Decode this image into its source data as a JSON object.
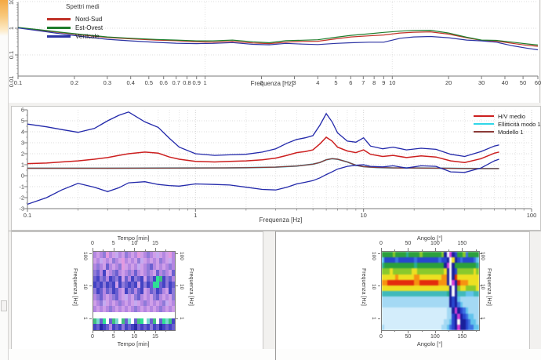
{
  "chart_data": [
    {
      "type": "line",
      "title": "Spettri medi",
      "xlabel": "Frequenza [Hz]",
      "xscale": "log",
      "yscale": "log",
      "xlim": [
        0.1,
        60
      ],
      "ylim": [
        0.016,
        9.4
      ],
      "xticks": [
        0.1,
        0.2,
        0.3,
        0.4,
        0.5,
        0.6,
        0.7,
        0.8,
        0.9,
        1,
        2,
        3,
        4,
        5,
        6,
        7,
        8,
        9,
        10,
        20,
        30,
        40,
        50,
        60
      ],
      "yticks": [
        "10",
        "1",
        "0.1",
        "0.01"
      ],
      "grid": true,
      "legend_position": "top-left",
      "series": [
        {
          "name": "Nord-Sud",
          "color": "#c03228",
          "x": [
            0.1,
            0.13,
            0.17,
            0.22,
            0.3,
            0.4,
            0.55,
            0.7,
            0.9,
            1.1,
            1.4,
            1.8,
            2.2,
            2.7,
            3.3,
            4,
            5,
            6,
            7.5,
            9,
            11,
            13,
            16,
            20,
            25,
            30,
            36,
            44,
            52,
            60
          ],
          "y": [
            1.05,
            0.85,
            0.68,
            0.56,
            0.45,
            0.4,
            0.36,
            0.34,
            0.31,
            0.3,
            0.32,
            0.28,
            0.265,
            0.3,
            0.32,
            0.325,
            0.4,
            0.47,
            0.52,
            0.56,
            0.66,
            0.71,
            0.73,
            0.6,
            0.44,
            0.35,
            0.33,
            0.27,
            0.23,
            0.21
          ]
        },
        {
          "name": "Est-Ovest",
          "color": "#1e7d2c",
          "x": [
            0.1,
            0.13,
            0.17,
            0.22,
            0.3,
            0.4,
            0.55,
            0.7,
            0.9,
            1.1,
            1.4,
            1.8,
            2.2,
            2.7,
            3.3,
            4,
            5,
            6,
            7.5,
            9,
            11,
            13,
            16,
            20,
            25,
            30,
            36,
            44,
            52,
            60
          ],
          "y": [
            1.07,
            0.88,
            0.71,
            0.58,
            0.47,
            0.42,
            0.38,
            0.36,
            0.335,
            0.335,
            0.36,
            0.31,
            0.285,
            0.34,
            0.355,
            0.37,
            0.46,
            0.54,
            0.62,
            0.7,
            0.78,
            0.83,
            0.84,
            0.66,
            0.46,
            0.36,
            0.35,
            0.3,
            0.26,
            0.235
          ]
        },
        {
          "name": "Verticale",
          "color": "#2c34a4",
          "x": [
            0.1,
            0.13,
            0.17,
            0.22,
            0.3,
            0.4,
            0.55,
            0.7,
            0.9,
            1.1,
            1.4,
            1.8,
            2.2,
            2.7,
            3.3,
            4,
            5,
            6,
            7.5,
            9,
            11,
            13,
            16,
            20,
            25,
            30,
            36,
            44,
            52,
            60
          ],
          "y": [
            1.02,
            0.8,
            0.62,
            0.49,
            0.385,
            0.335,
            0.295,
            0.275,
            0.265,
            0.27,
            0.29,
            0.25,
            0.24,
            0.27,
            0.255,
            0.245,
            0.27,
            0.285,
            0.3,
            0.3,
            0.42,
            0.47,
            0.49,
            0.44,
            0.36,
            0.335,
            0.3,
            0.22,
            0.18,
            0.155
          ]
        }
      ]
    },
    {
      "type": "line",
      "xlabel": "Frequenza [Hz]",
      "xscale": "log",
      "yscale": "linear",
      "xlim": [
        0.1,
        100
      ],
      "ylim": [
        -3,
        6
      ],
      "xticks": [
        0.1,
        1,
        10,
        100
      ],
      "yticks": [
        -3,
        -2,
        -1,
        0,
        1,
        2,
        3,
        4,
        5,
        6
      ],
      "grid": true,
      "legend_position": "top-right",
      "series": [
        {
          "name": "H/V medio",
          "color": "#cc1f1f",
          "x": [
            0.1,
            0.13,
            0.16,
            0.2,
            0.25,
            0.3,
            0.35,
            0.4,
            0.5,
            0.6,
            0.7,
            0.8,
            1,
            1.3,
            1.6,
            2,
            2.5,
            3,
            3.5,
            4,
            4.5,
            5,
            5.5,
            6,
            6.5,
            7,
            8,
            9,
            10,
            11,
            13,
            15,
            18,
            22,
            27,
            33,
            40,
            50,
            60,
            64
          ],
          "y": [
            1.1,
            1.15,
            1.25,
            1.35,
            1.5,
            1.65,
            1.85,
            2.0,
            2.15,
            2.05,
            1.7,
            1.5,
            1.3,
            1.25,
            1.3,
            1.35,
            1.45,
            1.6,
            1.85,
            2.1,
            2.2,
            2.35,
            2.9,
            3.5,
            3.15,
            2.6,
            2.25,
            2.1,
            2.35,
            1.95,
            1.75,
            1.85,
            1.65,
            1.8,
            1.7,
            1.35,
            1.2,
            1.55,
            2.05,
            2.15
          ]
        },
        {
          "name": "Ellitticità modo  1",
          "color": "#30d6e8",
          "x": [
            0.1,
            0.3,
            0.6,
            1,
            1.5,
            2,
            3,
            4,
            5,
            5.5,
            6,
            6.5,
            7,
            8,
            9,
            10,
            12,
            15,
            20,
            30,
            40,
            50,
            64
          ],
          "y": [
            0.68,
            0.68,
            0.69,
            0.7,
            0.71,
            0.73,
            0.78,
            0.88,
            1.05,
            1.2,
            1.45,
            1.55,
            1.5,
            1.25,
            0.95,
            0.82,
            0.74,
            0.71,
            0.7,
            0.68,
            0.66,
            0.65,
            0.65
          ]
        },
        {
          "name": "Modello 1",
          "color": "#8b3a38",
          "x": [
            0.1,
            0.3,
            0.6,
            1,
            1.5,
            2,
            3,
            4,
            5,
            5.5,
            6,
            6.5,
            7,
            8,
            9,
            10,
            12,
            15,
            20,
            30,
            40,
            50,
            64
          ],
          "y": [
            0.68,
            0.68,
            0.69,
            0.7,
            0.71,
            0.73,
            0.78,
            0.88,
            1.05,
            1.2,
            1.45,
            1.55,
            1.5,
            1.25,
            0.95,
            0.82,
            0.74,
            0.71,
            0.7,
            0.68,
            0.66,
            0.65,
            0.65
          ]
        },
        {
          "name": "H/V medio +sigma",
          "color": "#2228aa",
          "in_legend": false,
          "x": [
            0.1,
            0.13,
            0.16,
            0.2,
            0.25,
            0.3,
            0.35,
            0.4,
            0.5,
            0.6,
            0.7,
            0.8,
            1,
            1.3,
            1.6,
            2,
            2.5,
            3,
            3.5,
            4,
            4.5,
            5,
            5.5,
            6,
            6.5,
            7,
            8,
            9,
            10,
            11,
            13,
            15,
            18,
            22,
            27,
            33,
            40,
            50,
            60,
            64
          ],
          "y": [
            4.7,
            4.45,
            4.2,
            3.95,
            4.3,
            5.0,
            5.5,
            5.8,
            4.9,
            4.4,
            3.4,
            2.6,
            2.0,
            1.85,
            1.9,
            1.95,
            2.15,
            2.45,
            2.95,
            3.3,
            3.45,
            3.65,
            4.6,
            5.65,
            4.9,
            3.9,
            3.15,
            3.05,
            3.45,
            2.7,
            2.45,
            2.6,
            2.35,
            2.5,
            2.4,
            1.95,
            1.75,
            2.2,
            2.7,
            2.8
          ]
        },
        {
          "name": "H/V medio -sigma",
          "color": "#2228aa",
          "in_legend": false,
          "x": [
            0.1,
            0.13,
            0.16,
            0.2,
            0.25,
            0.3,
            0.35,
            0.4,
            0.5,
            0.6,
            0.7,
            0.8,
            1,
            1.3,
            1.6,
            2,
            2.5,
            3,
            3.5,
            4,
            4.5,
            5,
            5.5,
            6,
            6.5,
            7,
            8,
            9,
            10,
            11,
            13,
            15,
            18,
            22,
            27,
            33,
            40,
            50,
            60,
            64
          ],
          "y": [
            -2.6,
            -2.0,
            -1.3,
            -0.7,
            -1.05,
            -1.45,
            -1.1,
            -0.65,
            -0.55,
            -0.8,
            -0.9,
            -0.95,
            -0.75,
            -0.8,
            -0.85,
            -1.05,
            -1.25,
            -1.3,
            -1.05,
            -0.75,
            -0.6,
            -0.45,
            -0.2,
            0.1,
            0.35,
            0.6,
            0.85,
            0.95,
            1.0,
            0.85,
            0.8,
            0.9,
            0.7,
            0.9,
            0.85,
            0.35,
            0.3,
            0.7,
            1.35,
            1.5
          ]
        }
      ]
    },
    {
      "type": "heatmap",
      "xlabel_top": "Tempo [min]",
      "xlabel_bottom": "Tempo [min]",
      "ylabel_left": "Frequenza [Hz]",
      "ylabel_right": "Frequenza [Hz]",
      "xticks": [
        0,
        5,
        10,
        15
      ],
      "yticks": [
        "100",
        "10",
        "1"
      ],
      "palette": {
        "p": "#cf9fe8",
        "P": "#b487e2",
        "u": "#8f7ad9",
        "b": "#6b5fd0",
        "B": "#4343c4",
        "D": "#2a2aa8",
        "g": "#3fc07f",
        "G": "#2fe096",
        "c": "#79d9cf",
        "w": "#ffffff",
        "m": "#e39ae0",
        "L": "#c4aaf0"
      },
      "rows": [
        "PpPumPpLPpuPpPmpPuPpLpPpmP",
        "pPLpPpuPpmPpPpuLpPpPpuPpLP",
        "PuPpbPpPumpPpPLpPubPpPpPuP",
        "ubPBpPubPpPuPbPpPuPpbPuPpb",
        "bBubPBbuBpbPBubBpbuBGgBubP",
        "BbBuBbBpBubBbBpBuBbGGbBuBb",
        "uBbPbuBbPpBubPbBpPbuBbPpBu",
        "PubPpPubPpLPpubPpPpubPpPpu",
        "pPuLpPpPuPpPpLpPuPpPpPuLpP",
        "PpPpPuPpPpPpPuPpPpPpPuPpPp",
        "wwwwwwwwwwwwwwwwwwwwwwwwww",
        "gcbGwbgcwgbcwbgGwcbgwbGcgB",
        "BbDBbPBbBuBbBDbBbBuBbDBbBb"
      ]
    },
    {
      "type": "heatmap",
      "xlabel_top": "Angolo [°]",
      "xlabel_bottom": "Angolo [°]",
      "ylabel_left": "Frequenza [Hz]",
      "ylabel_right": "Frequenza [Hz]",
      "xticks": [
        0,
        50,
        100,
        150
      ],
      "yticks": [
        "100",
        "10",
        "1"
      ],
      "palette": {
        "G": "#2f9e3f",
        "g": "#8cc832",
        "T": "#2fae8f",
        "t": "#45b8ba",
        "Y": "#ecdf2a",
        "O": "#f29418",
        "R": "#dd2e10",
        "C": "#a6d9f2",
        "c": "#66c2ea",
        "b": "#3f72dd",
        "B": "#2a46c8",
        "D": "#1a1f96",
        "M": "#cf3fd2",
        "W": "#fafafa",
        "L": "#d4edfa"
      },
      "rows": [
        "GGGGgGGGGTGGGGgGGGGGGGgDWMDBGGgbGGGG",
        "cBBBBbBBBBBBbBBBBBBBBbBBDWYDBbBBBBbc",
        "TGGGGGGGGGGGTGGGGGGGGGGDMWDGGGGGGGGT",
        "gggYgggggggYYggggggggggYDWDBggggggYg",
        "YYYYYOYYYYYYOOYYYYYYYYOODWDRYYYYYYYY",
        "OORRRRRRRRRROORRRRRRROOODWMDROOOYYYY",
        "YYYYYYYYYYYYYYYYYYYYYYYYYDWDgYYggggY",
        "ttttttttttttttttttttttttTDWDtttccctt",
        "CCCCCCCCCCCCCCCCCCCCCCCCCDBDcCCCCCCC",
        "CCCCCCCCCCCCCCCCCCCCCCCCCDBDbcCCCCCC",
        "LLLLLLLLLLLLLLLLLLLLLLLLCCDMDBbcCCCC",
        "LLLLLLLLLLLLLLLLLLLLLLLLCCBDMDBbccCC",
        "LLLLLLLLLLLLLLLLLLLLLLLCCcBDWDDBbccC",
        "CLLLLLLLLLLLLLLLLLLLLLCCcbBDMDDBbbcc"
      ]
    }
  ]
}
